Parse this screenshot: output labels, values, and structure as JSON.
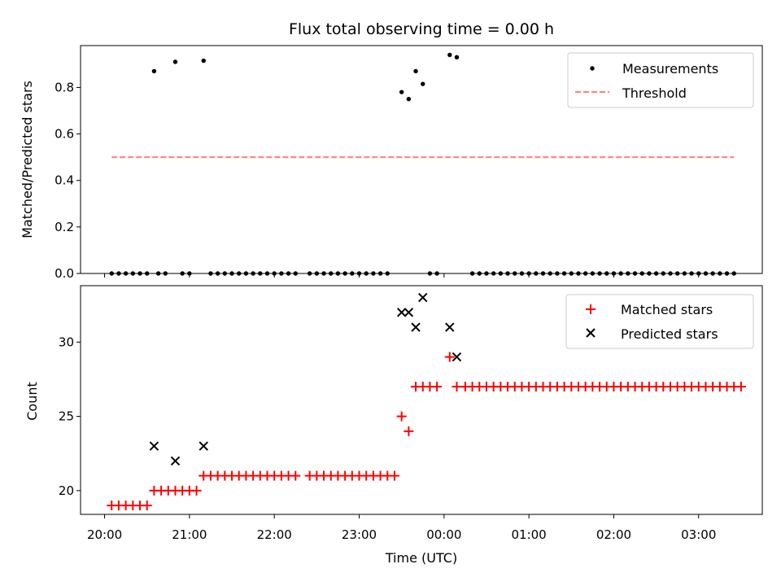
{
  "chart_data": [
    {
      "type": "scatter",
      "title": "Flux total observing time = 0.00 h",
      "xlabel": "",
      "ylabel": "Matched/Predicted stars",
      "xlim": [
        "19:43",
        "03:45"
      ],
      "ylim": [
        0,
        0.98
      ],
      "yticks": [
        "0.0",
        "0.2",
        "0.4",
        "0.6",
        "0.8"
      ],
      "grid": false,
      "legend_position": "top-right",
      "series": [
        {
          "name": "Measurements",
          "marker": "dot",
          "color": "#000000",
          "points": [
            [
              "20:05",
              0
            ],
            [
              "20:10",
              0
            ],
            [
              "20:15",
              0
            ],
            [
              "20:20",
              0
            ],
            [
              "20:25",
              0
            ],
            [
              "20:30",
              0
            ],
            [
              "20:35",
              0.87
            ],
            [
              "20:38",
              0
            ],
            [
              "20:43",
              0
            ],
            [
              "20:50",
              0.91
            ],
            [
              "20:55",
              0
            ],
            [
              "21:00",
              0
            ],
            [
              "21:10",
              0.915
            ],
            [
              "21:15",
              0
            ],
            [
              "21:20",
              0
            ],
            [
              "21:25",
              0
            ],
            [
              "21:30",
              0
            ],
            [
              "21:35",
              0
            ],
            [
              "21:40",
              0
            ],
            [
              "21:45",
              0
            ],
            [
              "21:50",
              0
            ],
            [
              "21:55",
              0
            ],
            [
              "22:00",
              0
            ],
            [
              "22:05",
              0
            ],
            [
              "22:10",
              0
            ],
            [
              "22:15",
              0
            ],
            [
              "22:25",
              0
            ],
            [
              "22:30",
              0
            ],
            [
              "22:35",
              0
            ],
            [
              "22:40",
              0
            ],
            [
              "22:45",
              0
            ],
            [
              "22:50",
              0
            ],
            [
              "22:55",
              0
            ],
            [
              "23:00",
              0
            ],
            [
              "23:05",
              0
            ],
            [
              "23:10",
              0
            ],
            [
              "23:15",
              0
            ],
            [
              "23:20",
              0
            ],
            [
              "23:30",
              0.78
            ],
            [
              "23:35",
              0.75
            ],
            [
              "23:40",
              0.87
            ],
            [
              "23:45",
              0.815
            ],
            [
              "23:50",
              0
            ],
            [
              "23:55",
              0
            ],
            [
              "00:04",
              0.94
            ],
            [
              "00:09",
              0.93
            ],
            [
              "00:20",
              0
            ],
            [
              "00:25",
              0
            ],
            [
              "00:30",
              0
            ],
            [
              "00:35",
              0
            ],
            [
              "00:40",
              0
            ],
            [
              "00:45",
              0
            ],
            [
              "00:50",
              0
            ],
            [
              "00:55",
              0
            ],
            [
              "01:00",
              0
            ],
            [
              "01:05",
              0
            ],
            [
              "01:10",
              0
            ],
            [
              "01:15",
              0
            ],
            [
              "01:20",
              0
            ],
            [
              "01:25",
              0
            ],
            [
              "01:30",
              0
            ],
            [
              "01:35",
              0
            ],
            [
              "01:40",
              0
            ],
            [
              "01:45",
              0
            ],
            [
              "01:50",
              0
            ],
            [
              "01:55",
              0
            ],
            [
              "02:00",
              0
            ],
            [
              "02:05",
              0
            ],
            [
              "02:10",
              0
            ],
            [
              "02:15",
              0
            ],
            [
              "02:20",
              0
            ],
            [
              "02:25",
              0
            ],
            [
              "02:30",
              0
            ],
            [
              "02:35",
              0
            ],
            [
              "02:40",
              0
            ],
            [
              "02:45",
              0
            ],
            [
              "02:50",
              0
            ],
            [
              "02:55",
              0
            ],
            [
              "03:00",
              0
            ],
            [
              "03:05",
              0
            ],
            [
              "03:10",
              0
            ],
            [
              "03:15",
              0
            ],
            [
              "03:20",
              0
            ],
            [
              "03:25",
              0
            ]
          ]
        },
        {
          "name": "Threshold",
          "type": "line",
          "style": "dashed",
          "color": "#ff7f7f",
          "points": [
            [
              "20:05",
              0.5
            ],
            [
              "03:25",
              0.5
            ]
          ]
        }
      ]
    },
    {
      "type": "scatter",
      "title": "",
      "xlabel": "Time (UTC)",
      "ylabel": "Count",
      "xlim": [
        "19:43",
        "03:45"
      ],
      "ylim": [
        18.4,
        33.8
      ],
      "xticks": [
        "20:00",
        "21:00",
        "22:00",
        "23:00",
        "00:00",
        "01:00",
        "02:00",
        "03:00"
      ],
      "yticks": [
        "20",
        "25",
        "30"
      ],
      "grid": false,
      "legend_position": "top-right",
      "series": [
        {
          "name": "Matched stars",
          "marker": "plus",
          "color": "#ff0000",
          "points": [
            [
              "20:05",
              19
            ],
            [
              "20:10",
              19
            ],
            [
              "20:15",
              19
            ],
            [
              "20:20",
              19
            ],
            [
              "20:25",
              19
            ],
            [
              "20:30",
              19
            ],
            [
              "20:35",
              20
            ],
            [
              "20:40",
              20
            ],
            [
              "20:45",
              20
            ],
            [
              "20:50",
              20
            ],
            [
              "20:55",
              20
            ],
            [
              "21:00",
              20
            ],
            [
              "21:05",
              20
            ],
            [
              "21:10",
              21
            ],
            [
              "21:15",
              21
            ],
            [
              "21:20",
              21
            ],
            [
              "21:25",
              21
            ],
            [
              "21:30",
              21
            ],
            [
              "21:35",
              21
            ],
            [
              "21:40",
              21
            ],
            [
              "21:45",
              21
            ],
            [
              "21:50",
              21
            ],
            [
              "21:55",
              21
            ],
            [
              "22:00",
              21
            ],
            [
              "22:05",
              21
            ],
            [
              "22:10",
              21
            ],
            [
              "22:15",
              21
            ],
            [
              "22:25",
              21
            ],
            [
              "22:30",
              21
            ],
            [
              "22:35",
              21
            ],
            [
              "22:40",
              21
            ],
            [
              "22:45",
              21
            ],
            [
              "22:50",
              21
            ],
            [
              "22:55",
              21
            ],
            [
              "23:00",
              21
            ],
            [
              "23:05",
              21
            ],
            [
              "23:10",
              21
            ],
            [
              "23:15",
              21
            ],
            [
              "23:20",
              21
            ],
            [
              "23:25",
              21
            ],
            [
              "23:30",
              25
            ],
            [
              "23:35",
              24
            ],
            [
              "23:40",
              27
            ],
            [
              "23:45",
              27
            ],
            [
              "23:50",
              27
            ],
            [
              "23:55",
              27
            ],
            [
              "00:04",
              29
            ],
            [
              "00:09",
              27
            ],
            [
              "00:15",
              27
            ],
            [
              "00:20",
              27
            ],
            [
              "00:25",
              27
            ],
            [
              "00:30",
              27
            ],
            [
              "00:35",
              27
            ],
            [
              "00:40",
              27
            ],
            [
              "00:45",
              27
            ],
            [
              "00:50",
              27
            ],
            [
              "00:55",
              27
            ],
            [
              "01:00",
              27
            ],
            [
              "01:05",
              27
            ],
            [
              "01:10",
              27
            ],
            [
              "01:15",
              27
            ],
            [
              "01:20",
              27
            ],
            [
              "01:25",
              27
            ],
            [
              "01:30",
              27
            ],
            [
              "01:35",
              27
            ],
            [
              "01:40",
              27
            ],
            [
              "01:45",
              27
            ],
            [
              "01:50",
              27
            ],
            [
              "01:55",
              27
            ],
            [
              "02:00",
              27
            ],
            [
              "02:05",
              27
            ],
            [
              "02:10",
              27
            ],
            [
              "02:15",
              27
            ],
            [
              "02:20",
              27
            ],
            [
              "02:25",
              27
            ],
            [
              "02:30",
              27
            ],
            [
              "02:35",
              27
            ],
            [
              "02:40",
              27
            ],
            [
              "02:45",
              27
            ],
            [
              "02:50",
              27
            ],
            [
              "02:55",
              27
            ],
            [
              "03:00",
              27
            ],
            [
              "03:05",
              27
            ],
            [
              "03:10",
              27
            ],
            [
              "03:15",
              27
            ],
            [
              "03:20",
              27
            ],
            [
              "03:25",
              27
            ],
            [
              "03:30",
              27
            ]
          ]
        },
        {
          "name": "Predicted stars",
          "marker": "x",
          "color": "#000000",
          "points": [
            [
              "20:35",
              23
            ],
            [
              "20:50",
              22
            ],
            [
              "21:10",
              23
            ],
            [
              "23:30",
              32
            ],
            [
              "23:35",
              32
            ],
            [
              "23:40",
              31
            ],
            [
              "23:45",
              33
            ],
            [
              "00:04",
              31
            ],
            [
              "00:09",
              29
            ]
          ]
        }
      ]
    }
  ]
}
